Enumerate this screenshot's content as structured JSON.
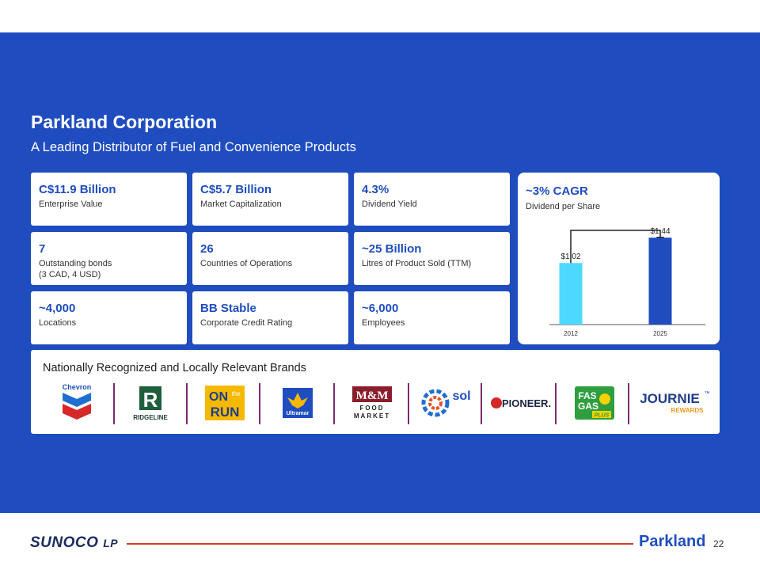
{
  "slide": {
    "title": "Parkland Corporation",
    "subtitle": "A Leading Distributor of Fuel and Convenience Products"
  },
  "stats": [
    {
      "value": "C$11.9 Billion",
      "label": "Enterprise Value"
    },
    {
      "value": "C$5.7 Billion",
      "label": "Market Capitalization"
    },
    {
      "value": "4.3%",
      "label": "Dividend Yield"
    },
    {
      "value": "7",
      "label": "Outstanding bonds",
      "label2": "(3 CAD, 4 USD)"
    },
    {
      "value": "26",
      "label": "Countries of Operations"
    },
    {
      "value": "~25 Billion",
      "label": "Litres of Product Sold (TTM)"
    },
    {
      "value": "~4,000",
      "label": "Locations"
    },
    {
      "value": "BB Stable",
      "label": "Corporate Credit Rating"
    },
    {
      "value": "~6,000",
      "label": "Employees"
    }
  ],
  "dividend_card": {
    "value": "~3% CAGR",
    "label": "Dividend per Share"
  },
  "chart_data": {
    "type": "bar",
    "categories": [
      "2012",
      "2025"
    ],
    "values": [
      1.02,
      1.44
    ],
    "data_labels": [
      "$1.02",
      "$1.44"
    ],
    "colors": [
      "#4dd9ff",
      "#1f4dbf"
    ],
    "ylim": [
      0,
      1.6
    ],
    "title": "",
    "xlabel": "",
    "ylabel": ""
  },
  "brands": {
    "title": "Nationally Recognized and Locally Relevant Brands",
    "logos": {
      "chevron": "Chevron",
      "ridgeline": "RIDGELINE",
      "ontherun_on": "ON",
      "ontherun_the": "the",
      "ontherun_run": "RUN",
      "ultramar": "Ultramar",
      "mm": "M&M",
      "mm_food": "FOOD",
      "mm_market": "MARKET",
      "sol": "sol",
      "pioneer": "PIONEER.",
      "fasgas_fas": "FAS",
      "fasgas_gas": "GAS",
      "fasgas_plus": "PLUS",
      "journie": "JOURNIE",
      "journie_tm": "™",
      "journie_rewards": "REWARDS"
    }
  },
  "footer": {
    "left_logo": "SUNOCO",
    "left_logo_lp": "LP",
    "right_logo": "Parkland",
    "page_number": "22"
  },
  "colors": {
    "brand_blue": "#1f4dbf",
    "light_blue": "#4dd9ff",
    "footer_red": "#d33a2c",
    "divider_purple": "#7d2b6e"
  }
}
